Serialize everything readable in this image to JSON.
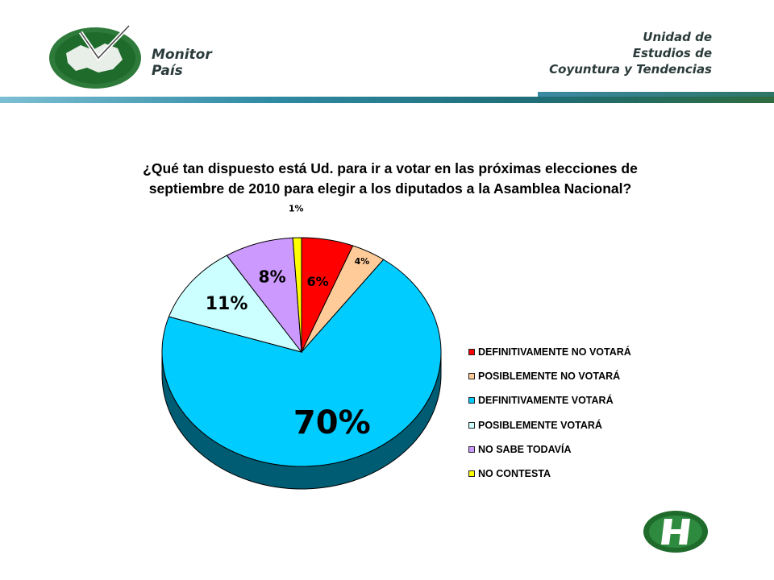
{
  "header": {
    "brand": [
      "Monitor",
      "País"
    ],
    "unit": [
      "Unidad de",
      "Estudios de",
      "Coyuntura y Tendencias"
    ]
  },
  "question": [
    "¿Qué tan dispuesto está Ud. para ir a votar en las próximas elecciones de",
    "septiembre de 2010 para elegir a los diputados a la Asamblea Nacional?"
  ],
  "chart_data": {
    "type": "pie",
    "title": "¿Qué tan dispuesto está Ud. para ir a votar en las próximas elecciones de septiembre de 2010 para elegir a los diputados a la Asamblea Nacional?",
    "slices": [
      {
        "name": "DEFINITIVAMENTE NO VOTARÁ",
        "value": 6,
        "label": "6%",
        "color": "#ff0000"
      },
      {
        "name": "POSIBLEMENTE NO VOTARÁ",
        "value": 4,
        "label": "4%",
        "color": "#ffcc99"
      },
      {
        "name": "DEFINITIVAMENTE VOTARÁ",
        "value": 70,
        "label": "70%",
        "color": "#00ccff"
      },
      {
        "name": "POSIBLEMENTE VOTARÁ",
        "value": 11,
        "label": "11%",
        "color": "#ccffff"
      },
      {
        "name": "NO SABE TODAVÍA",
        "value": 8,
        "label": "8%",
        "color": "#cc99ff"
      },
      {
        "name": "NO CONTESTA",
        "value": 1,
        "label": "1%",
        "color": "#ffff00"
      }
    ],
    "legend_position": "right"
  }
}
